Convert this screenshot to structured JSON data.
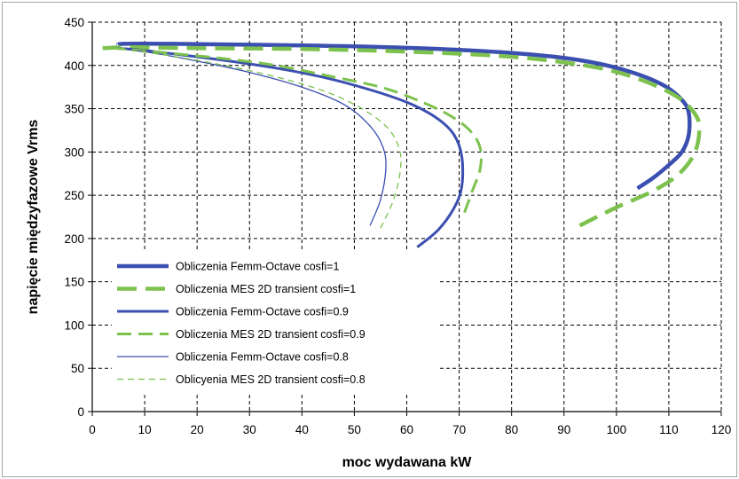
{
  "chart_data": {
    "type": "line",
    "title": "",
    "xlabel": "moc wydawana kW",
    "ylabel": "napięcie międzyfazowe Vrms",
    "xlim": [
      0,
      120
    ],
    "ylim": [
      0,
      450
    ],
    "xticks": [
      0,
      10,
      20,
      30,
      40,
      50,
      60,
      70,
      80,
      90,
      100,
      110,
      120
    ],
    "yticks": [
      0,
      50,
      100,
      150,
      200,
      250,
      300,
      350,
      400,
      450
    ],
    "grid": true,
    "legend_position": "bottom-left",
    "series": [
      {
        "name": "Obliczenia Femm-Octave cosfi=1",
        "color": "#3b4fb0",
        "style": "solid",
        "width": 4.5,
        "x": [
          104,
          107,
          110,
          112.5,
          113.8,
          113.8,
          112.5,
          109,
          103,
          95,
          85,
          70,
          50,
          30,
          15,
          6,
          5
        ],
        "y": [
          258,
          270,
          285,
          300,
          320,
          345,
          360,
          377,
          392,
          404,
          412,
          418,
          422,
          424,
          425,
          425,
          423
        ]
      },
      {
        "name": "Obliczenia MES 2D transient cosfi=1",
        "color": "#7dc14e",
        "style": "dashed",
        "width": 4.5,
        "x": [
          93,
          100,
          107,
          112,
          115,
          115.8,
          114.5,
          111,
          104,
          95,
          80,
          60,
          40,
          20,
          8,
          2
        ],
        "y": [
          215,
          236,
          255,
          275,
          300,
          330,
          348,
          366,
          385,
          399,
          410,
          416,
          419,
          420,
          421,
          420
        ]
      },
      {
        "name": "Obliczenia Femm-Octave cosfi=0.9",
        "color": "#3b4fb0",
        "style": "solid",
        "width": 3,
        "x": [
          62,
          66,
          69,
          70.5,
          70.5,
          69,
          66,
          61,
          54,
          45,
          35,
          25,
          16,
          9,
          4
        ],
        "y": [
          190,
          210,
          235,
          260,
          295,
          320,
          338,
          355,
          370,
          385,
          397,
          406,
          413,
          418,
          420
        ]
      },
      {
        "name": "Obliczenia MES 2D transient cosfi=0.9",
        "color": "#7dc14e",
        "style": "dashed",
        "width": 3,
        "x": [
          71,
          72.5,
          74,
          74,
          72,
          68,
          62,
          55,
          45,
          35,
          25,
          15,
          8,
          2
        ],
        "y": [
          230,
          255,
          280,
          305,
          325,
          343,
          360,
          375,
          388,
          400,
          408,
          414,
          418,
          421
        ]
      },
      {
        "name": "Obliczenia Femm-Octave cosfi=0.8",
        "color": "#3b4fb0",
        "style": "solid",
        "width": 1.3,
        "x": [
          53,
          55,
          56,
          55.5,
          53,
          48,
          40,
          30,
          20,
          12,
          7
        ],
        "y": [
          215,
          245,
          280,
          305,
          330,
          355,
          375,
          392,
          405,
          414,
          418
        ]
      },
      {
        "name": "Oblicyenia MES 2D transient cosfi=0.8",
        "color": "#7dc14e",
        "style": "dashed",
        "width": 1.3,
        "x": [
          55,
          57.5,
          58.8,
          58.5,
          56,
          50,
          42,
          30,
          18,
          8,
          3
        ],
        "y": [
          212,
          245,
          280,
          305,
          330,
          355,
          375,
          394,
          408,
          417,
          420
        ]
      }
    ]
  }
}
